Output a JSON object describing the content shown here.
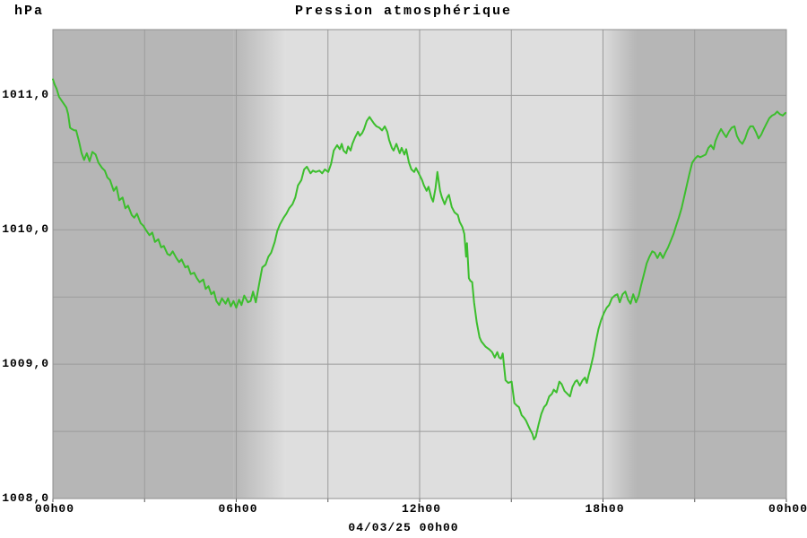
{
  "header": {
    "unit": "hPa",
    "title": "Pression atmosphérique"
  },
  "x_axis": {
    "date_label": "04/03/25 00h00",
    "ticks": [
      {
        "label": "00h00",
        "t": 0
      },
      {
        "label": "06h00",
        "t": 6
      },
      {
        "label": "12h00",
        "t": 12
      },
      {
        "label": "18h00",
        "t": 18
      },
      {
        "label": "00h00",
        "t": 24
      }
    ]
  },
  "y_axis": {
    "ticks": [
      {
        "label": "1011,0",
        "value": 1011.0
      },
      {
        "label": "1010,0",
        "value": 1010.0
      },
      {
        "label": "1009,0",
        "value": 1009.0
      },
      {
        "label": "1008,0",
        "value": 1008.0
      }
    ]
  },
  "chart_data": {
    "type": "line",
    "title": "Pression atmosphérique",
    "xlabel": "04/03/25 00h00",
    "ylabel": "hPa",
    "xlim_hours": [
      0,
      24
    ],
    "ylim": [
      1008.0,
      1011.49
    ],
    "grid": {
      "x_step_hours": 3,
      "y_step_hpa": 0.5,
      "visible": true
    },
    "legend": "none",
    "day_night_shading": {
      "dawn_start_h": 5.9,
      "dawn_end_h": 7.6,
      "dusk_start_h": 17.9,
      "dusk_end_h": 19.1
    },
    "colors": {
      "line": "#3CBE2D",
      "title": "#3CBE2D",
      "night_band": "#b6b6b6",
      "day_band": "#dedede",
      "grid": "#9b9b9b",
      "border": "#8f8f8f",
      "text": "#000000"
    },
    "series": [
      {
        "name": "Pression atmosphérique",
        "unit": "hPa",
        "points": [
          [
            0.0,
            1011.12
          ],
          [
            0.06,
            1011.08
          ],
          [
            0.12,
            1011.05
          ],
          [
            0.2,
            1010.99
          ],
          [
            0.32,
            1010.95
          ],
          [
            0.44,
            1010.91
          ],
          [
            0.5,
            1010.86
          ],
          [
            0.56,
            1010.76
          ],
          [
            0.62,
            1010.75
          ],
          [
            0.7,
            1010.74
          ],
          [
            0.76,
            1010.74
          ],
          [
            0.85,
            1010.66
          ],
          [
            0.94,
            1010.57
          ],
          [
            1.02,
            1010.52
          ],
          [
            1.11,
            1010.57
          ],
          [
            1.2,
            1010.51
          ],
          [
            1.29,
            1010.58
          ],
          [
            1.4,
            1010.56
          ],
          [
            1.49,
            1010.5
          ],
          [
            1.61,
            1010.46
          ],
          [
            1.7,
            1010.44
          ],
          [
            1.78,
            1010.39
          ],
          [
            1.87,
            1010.37
          ],
          [
            1.99,
            1010.29
          ],
          [
            2.08,
            1010.32
          ],
          [
            2.17,
            1010.22
          ],
          [
            2.28,
            1010.24
          ],
          [
            2.37,
            1010.16
          ],
          [
            2.46,
            1010.18
          ],
          [
            2.58,
            1010.11
          ],
          [
            2.66,
            1010.09
          ],
          [
            2.75,
            1010.12
          ],
          [
            2.87,
            1010.05
          ],
          [
            2.96,
            1010.03
          ],
          [
            3.04,
            1010.0
          ],
          [
            3.16,
            1009.96
          ],
          [
            3.25,
            1009.98
          ],
          [
            3.34,
            1009.91
          ],
          [
            3.45,
            1009.93
          ],
          [
            3.54,
            1009.87
          ],
          [
            3.63,
            1009.88
          ],
          [
            3.75,
            1009.82
          ],
          [
            3.83,
            1009.81
          ],
          [
            3.92,
            1009.84
          ],
          [
            4.04,
            1009.79
          ],
          [
            4.13,
            1009.76
          ],
          [
            4.21,
            1009.78
          ],
          [
            4.33,
            1009.72
          ],
          [
            4.42,
            1009.73
          ],
          [
            4.51,
            1009.67
          ],
          [
            4.62,
            1009.68
          ],
          [
            4.71,
            1009.64
          ],
          [
            4.8,
            1009.61
          ],
          [
            4.92,
            1009.63
          ],
          [
            5.0,
            1009.56
          ],
          [
            5.09,
            1009.58
          ],
          [
            5.18,
            1009.52
          ],
          [
            5.27,
            1009.54
          ],
          [
            5.35,
            1009.47
          ],
          [
            5.44,
            1009.44
          ],
          [
            5.53,
            1009.49
          ],
          [
            5.65,
            1009.45
          ],
          [
            5.73,
            1009.49
          ],
          [
            5.82,
            1009.43
          ],
          [
            5.91,
            1009.47
          ],
          [
            6.0,
            1009.42
          ],
          [
            6.09,
            1009.48
          ],
          [
            6.17,
            1009.44
          ],
          [
            6.26,
            1009.51
          ],
          [
            6.38,
            1009.46
          ],
          [
            6.47,
            1009.47
          ],
          [
            6.55,
            1009.54
          ],
          [
            6.64,
            1009.46
          ],
          [
            6.76,
            1009.61
          ],
          [
            6.85,
            1009.72
          ],
          [
            6.96,
            1009.74
          ],
          [
            7.05,
            1009.8
          ],
          [
            7.14,
            1009.83
          ],
          [
            7.26,
            1009.91
          ],
          [
            7.34,
            1009.99
          ],
          [
            7.43,
            1010.04
          ],
          [
            7.55,
            1010.09
          ],
          [
            7.64,
            1010.12
          ],
          [
            7.73,
            1010.16
          ],
          [
            7.84,
            1010.19
          ],
          [
            7.93,
            1010.24
          ],
          [
            8.02,
            1010.33
          ],
          [
            8.13,
            1010.37
          ],
          [
            8.22,
            1010.45
          ],
          [
            8.31,
            1010.47
          ],
          [
            8.43,
            1010.42
          ],
          [
            8.51,
            1010.44
          ],
          [
            8.6,
            1010.43
          ],
          [
            8.72,
            1010.44
          ],
          [
            8.81,
            1010.42
          ],
          [
            8.9,
            1010.45
          ],
          [
            9.01,
            1010.43
          ],
          [
            9.1,
            1010.49
          ],
          [
            9.19,
            1010.59
          ],
          [
            9.3,
            1010.63
          ],
          [
            9.39,
            1010.6
          ],
          [
            9.45,
            1010.64
          ],
          [
            9.51,
            1010.59
          ],
          [
            9.6,
            1010.57
          ],
          [
            9.66,
            1010.62
          ],
          [
            9.74,
            1010.59
          ],
          [
            9.8,
            1010.64
          ],
          [
            9.89,
            1010.69
          ],
          [
            9.98,
            1010.73
          ],
          [
            10.04,
            1010.7
          ],
          [
            10.12,
            1010.72
          ],
          [
            10.18,
            1010.75
          ],
          [
            10.27,
            1010.81
          ],
          [
            10.36,
            1010.84
          ],
          [
            10.42,
            1010.82
          ],
          [
            10.51,
            1010.79
          ],
          [
            10.59,
            1010.77
          ],
          [
            10.68,
            1010.76
          ],
          [
            10.77,
            1010.74
          ],
          [
            10.86,
            1010.77
          ],
          [
            10.94,
            1010.73
          ],
          [
            11.0,
            1010.67
          ],
          [
            11.09,
            1010.61
          ],
          [
            11.15,
            1010.59
          ],
          [
            11.24,
            1010.64
          ],
          [
            11.35,
            1010.57
          ],
          [
            11.41,
            1010.61
          ],
          [
            11.5,
            1010.56
          ],
          [
            11.56,
            1010.6
          ],
          [
            11.65,
            1010.5
          ],
          [
            11.73,
            1010.45
          ],
          [
            11.82,
            1010.43
          ],
          [
            11.88,
            1010.46
          ],
          [
            11.97,
            1010.42
          ],
          [
            12.08,
            1010.37
          ],
          [
            12.14,
            1010.33
          ],
          [
            12.23,
            1010.29
          ],
          [
            12.29,
            1010.32
          ],
          [
            12.38,
            1010.24
          ],
          [
            12.44,
            1010.21
          ],
          [
            12.52,
            1010.31
          ],
          [
            12.58,
            1010.43
          ],
          [
            12.67,
            1010.29
          ],
          [
            12.73,
            1010.24
          ],
          [
            12.82,
            1010.19
          ],
          [
            12.9,
            1010.24
          ],
          [
            12.96,
            1010.26
          ],
          [
            13.05,
            1010.17
          ],
          [
            13.14,
            1010.13
          ],
          [
            13.25,
            1010.11
          ],
          [
            13.31,
            1010.06
          ],
          [
            13.4,
            1010.02
          ],
          [
            13.46,
            1009.97
          ],
          [
            13.52,
            1009.8
          ],
          [
            13.55,
            1009.9
          ],
          [
            13.61,
            1009.64
          ],
          [
            13.66,
            1009.62
          ],
          [
            13.72,
            1009.61
          ],
          [
            13.78,
            1009.46
          ],
          [
            13.87,
            1009.31
          ],
          [
            13.96,
            1009.2
          ],
          [
            14.02,
            1009.17
          ],
          [
            14.16,
            1009.13
          ],
          [
            14.28,
            1009.11
          ],
          [
            14.37,
            1009.09
          ],
          [
            14.46,
            1009.05
          ],
          [
            14.54,
            1009.09
          ],
          [
            14.6,
            1009.05
          ],
          [
            14.66,
            1009.04
          ],
          [
            14.72,
            1009.08
          ],
          [
            14.81,
            1008.88
          ],
          [
            14.9,
            1008.86
          ],
          [
            15.01,
            1008.87
          ],
          [
            15.1,
            1008.71
          ],
          [
            15.19,
            1008.69
          ],
          [
            15.25,
            1008.68
          ],
          [
            15.34,
            1008.62
          ],
          [
            15.42,
            1008.6
          ],
          [
            15.48,
            1008.58
          ],
          [
            15.6,
            1008.52
          ],
          [
            15.69,
            1008.48
          ],
          [
            15.74,
            1008.44
          ],
          [
            15.8,
            1008.46
          ],
          [
            15.89,
            1008.55
          ],
          [
            15.98,
            1008.63
          ],
          [
            16.07,
            1008.68
          ],
          [
            16.15,
            1008.7
          ],
          [
            16.24,
            1008.76
          ],
          [
            16.33,
            1008.78
          ],
          [
            16.39,
            1008.81
          ],
          [
            16.48,
            1008.79
          ],
          [
            16.57,
            1008.87
          ],
          [
            16.65,
            1008.85
          ],
          [
            16.74,
            1008.8
          ],
          [
            16.83,
            1008.78
          ],
          [
            16.92,
            1008.76
          ],
          [
            17.0,
            1008.83
          ],
          [
            17.09,
            1008.87
          ],
          [
            17.15,
            1008.88
          ],
          [
            17.24,
            1008.84
          ],
          [
            17.33,
            1008.88
          ],
          [
            17.41,
            1008.9
          ],
          [
            17.47,
            1008.86
          ],
          [
            17.53,
            1008.92
          ],
          [
            17.59,
            1008.97
          ],
          [
            17.68,
            1009.06
          ],
          [
            17.76,
            1009.16
          ],
          [
            17.85,
            1009.26
          ],
          [
            17.94,
            1009.33
          ],
          [
            18.03,
            1009.38
          ],
          [
            18.12,
            1009.42
          ],
          [
            18.2,
            1009.44
          ],
          [
            18.29,
            1009.49
          ],
          [
            18.38,
            1009.51
          ],
          [
            18.47,
            1009.52
          ],
          [
            18.55,
            1009.46
          ],
          [
            18.64,
            1009.52
          ],
          [
            18.73,
            1009.54
          ],
          [
            18.82,
            1009.48
          ],
          [
            18.9,
            1009.45
          ],
          [
            18.99,
            1009.52
          ],
          [
            19.08,
            1009.46
          ],
          [
            19.17,
            1009.51
          ],
          [
            19.25,
            1009.59
          ],
          [
            19.34,
            1009.67
          ],
          [
            19.43,
            1009.75
          ],
          [
            19.52,
            1009.8
          ],
          [
            19.61,
            1009.84
          ],
          [
            19.69,
            1009.83
          ],
          [
            19.78,
            1009.79
          ],
          [
            19.87,
            1009.83
          ],
          [
            19.96,
            1009.79
          ],
          [
            20.04,
            1009.83
          ],
          [
            20.13,
            1009.87
          ],
          [
            20.22,
            1009.92
          ],
          [
            20.31,
            1009.97
          ],
          [
            20.39,
            1010.03
          ],
          [
            20.48,
            1010.09
          ],
          [
            20.57,
            1010.16
          ],
          [
            20.66,
            1010.25
          ],
          [
            20.74,
            1010.33
          ],
          [
            20.83,
            1010.42
          ],
          [
            20.92,
            1010.5
          ],
          [
            21.01,
            1010.53
          ],
          [
            21.1,
            1010.55
          ],
          [
            21.18,
            1010.54
          ],
          [
            21.27,
            1010.55
          ],
          [
            21.36,
            1010.56
          ],
          [
            21.45,
            1010.61
          ],
          [
            21.53,
            1010.63
          ],
          [
            21.62,
            1010.6
          ],
          [
            21.68,
            1010.66
          ],
          [
            21.77,
            1010.71
          ],
          [
            21.86,
            1010.75
          ],
          [
            21.94,
            1010.72
          ],
          [
            22.03,
            1010.69
          ],
          [
            22.12,
            1010.73
          ],
          [
            22.21,
            1010.76
          ],
          [
            22.3,
            1010.77
          ],
          [
            22.38,
            1010.7
          ],
          [
            22.47,
            1010.66
          ],
          [
            22.56,
            1010.64
          ],
          [
            22.65,
            1010.68
          ],
          [
            22.74,
            1010.74
          ],
          [
            22.82,
            1010.77
          ],
          [
            22.91,
            1010.77
          ],
          [
            23.0,
            1010.73
          ],
          [
            23.09,
            1010.68
          ],
          [
            23.18,
            1010.71
          ],
          [
            23.26,
            1010.75
          ],
          [
            23.35,
            1010.79
          ],
          [
            23.44,
            1010.83
          ],
          [
            23.53,
            1010.85
          ],
          [
            23.62,
            1010.86
          ],
          [
            23.7,
            1010.88
          ],
          [
            23.79,
            1010.86
          ],
          [
            23.88,
            1010.85
          ],
          [
            23.97,
            1010.87
          ]
        ]
      }
    ]
  }
}
